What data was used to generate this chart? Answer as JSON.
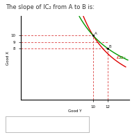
{
  "title": "The slope of IC₂ from A to B is:",
  "xlabel": "Good Y",
  "ylabel": "Good X",
  "yticks": [
    8,
    9,
    10
  ],
  "xticks": [
    10,
    12
  ],
  "xlim": [
    0,
    15
  ],
  "ylim": [
    0,
    13
  ],
  "point_A": [
    10,
    10
  ],
  "point_B": [
    12,
    8
  ],
  "ic1_color": "#dd0000",
  "ic2_color": "#009900",
  "dashed_color": "#e05555",
  "bg_color": "#ffffff",
  "title_fontsize": 6.0,
  "tick_fontsize": 4.0,
  "label_fontsize": 4.0,
  "curve_label_fontsize": 4.5
}
